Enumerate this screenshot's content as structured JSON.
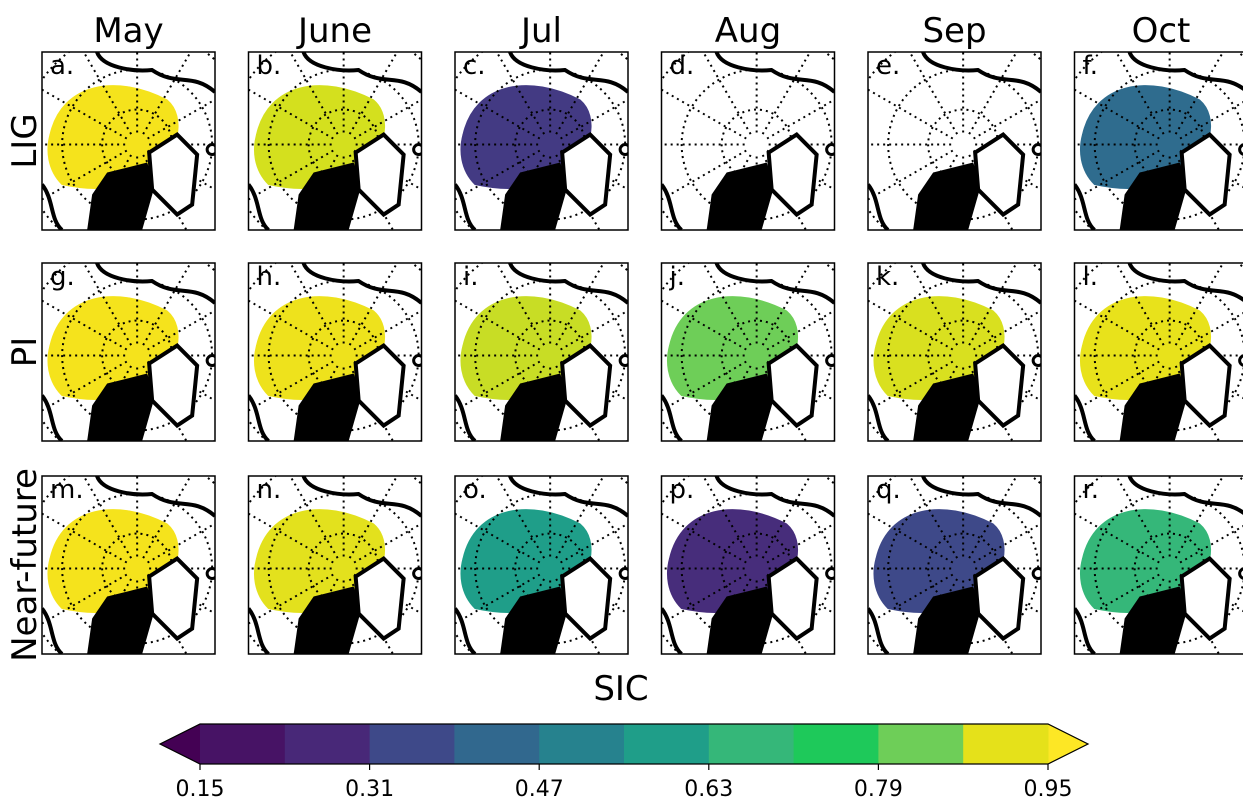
{
  "columns": [
    "May",
    "June",
    "Jul",
    "Aug",
    "Sep",
    "Oct"
  ],
  "rows": [
    {
      "label": "LIG",
      "panels": [
        {
          "letter": "a.",
          "color": "#f5e31c"
        },
        {
          "letter": "b.",
          "color": "#d4e01e"
        },
        {
          "letter": "c.",
          "color": "#433a83"
        },
        {
          "letter": "d.",
          "color": null
        },
        {
          "letter": "e.",
          "color": null
        },
        {
          "letter": "f.",
          "color": "#2f6c8e"
        }
      ]
    },
    {
      "label": "PI",
      "panels": [
        {
          "letter": "g.",
          "color": "#f5e31c"
        },
        {
          "letter": "h.",
          "color": "#eee21c"
        },
        {
          "letter": "i.",
          "color": "#c8dd25"
        },
        {
          "letter": "j.",
          "color": "#6ece58"
        },
        {
          "letter": "k.",
          "color": "#d9e01f"
        },
        {
          "letter": "l.",
          "color": "#e8e21b"
        }
      ]
    },
    {
      "label": "Near-future",
      "panels": [
        {
          "letter": "m.",
          "color": "#f5e31c"
        },
        {
          "letter": "n.",
          "color": "#e3e11d"
        },
        {
          "letter": "o.",
          "color": "#1f9e89"
        },
        {
          "letter": "p.",
          "color": "#472d7b"
        },
        {
          "letter": "q.",
          "color": "#3e4989"
        },
        {
          "letter": "r.",
          "color": "#35b779"
        }
      ]
    }
  ],
  "colorbar": {
    "label": "SIC",
    "vlim": [
      0.15,
      0.95
    ],
    "ticks": [
      0.15,
      0.31,
      0.47,
      0.63,
      0.79,
      0.95
    ],
    "colors": [
      "#471365",
      "#482878",
      "#3e4989",
      "#31688e",
      "#26828e",
      "#1f9e89",
      "#35b779",
      "#1ec95a",
      "#6ece58",
      "#e5e11a"
    ],
    "under_color": "#440154",
    "over_color": "#fde725"
  }
}
